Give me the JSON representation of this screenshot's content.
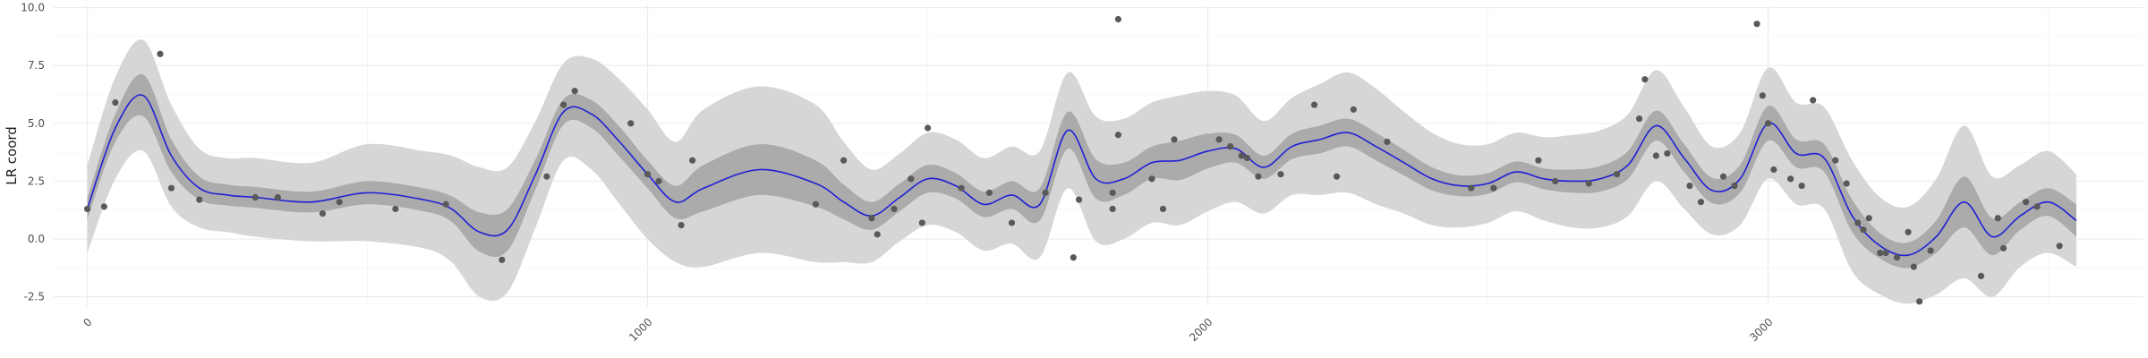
{
  "chart_data": {
    "type": "scatter",
    "title": "",
    "xlabel": "",
    "ylabel": "LR coord",
    "xlim": [
      -60,
      3670
    ],
    "ylim": [
      -2.9,
      10.1
    ],
    "x_ticks": [
      0,
      1000,
      2000,
      3000
    ],
    "x_tick_labels": [
      "0",
      "1000",
      "2000",
      "3000"
    ],
    "y_ticks": [
      -2.5,
      0.0,
      2.5,
      5.0,
      7.5,
      10.0
    ],
    "y_tick_labels": [
      "-2.5",
      "0.0",
      "2.5",
      "5.0",
      "7.5",
      "10.0"
    ],
    "grid": true,
    "colors": {
      "points": "#595959",
      "fit_line": "#1f1fd6",
      "inner_band": "#ababab",
      "outer_band": "#d6d6d6",
      "grid_major": "#ebebeb",
      "grid_minor": "#f4f4f4"
    },
    "points": [
      [
        0,
        1.3
      ],
      [
        30,
        1.4
      ],
      [
        50,
        5.9
      ],
      [
        130,
        8.0
      ],
      [
        150,
        2.2
      ],
      [
        200,
        1.7
      ],
      [
        300,
        1.8
      ],
      [
        340,
        1.8
      ],
      [
        420,
        1.1
      ],
      [
        450,
        1.6
      ],
      [
        550,
        1.3
      ],
      [
        640,
        1.5
      ],
      [
        740,
        -0.9
      ],
      [
        820,
        2.7
      ],
      [
        850,
        5.8
      ],
      [
        870,
        6.4
      ],
      [
        970,
        5.0
      ],
      [
        1000,
        2.8
      ],
      [
        1020,
        2.5
      ],
      [
        1060,
        0.6
      ],
      [
        1080,
        3.4
      ],
      [
        1300,
        1.5
      ],
      [
        1350,
        3.4
      ],
      [
        1400,
        0.9
      ],
      [
        1410,
        0.2
      ],
      [
        1440,
        1.3
      ],
      [
        1470,
        2.6
      ],
      [
        1490,
        0.7
      ],
      [
        1500,
        4.8
      ],
      [
        1560,
        2.2
      ],
      [
        1610,
        2.0
      ],
      [
        1650,
        0.7
      ],
      [
        1710,
        2.0
      ],
      [
        1760,
        -0.8
      ],
      [
        1770,
        1.7
      ],
      [
        1840,
        9.5
      ],
      [
        1840,
        4.5
      ],
      [
        1830,
        2.0
      ],
      [
        1830,
        1.3
      ],
      [
        1900,
        2.6
      ],
      [
        1920,
        1.3
      ],
      [
        1940,
        4.3
      ],
      [
        2020,
        4.3
      ],
      [
        2040,
        4.0
      ],
      [
        2060,
        3.6
      ],
      [
        2070,
        3.5
      ],
      [
        2090,
        2.7
      ],
      [
        2130,
        2.8
      ],
      [
        2190,
        5.8
      ],
      [
        2230,
        2.7
      ],
      [
        2260,
        5.6
      ],
      [
        2320,
        4.2
      ],
      [
        2470,
        2.2
      ],
      [
        2510,
        2.2
      ],
      [
        2590,
        3.4
      ],
      [
        2620,
        2.5
      ],
      [
        2680,
        2.4
      ],
      [
        2730,
        2.8
      ],
      [
        2770,
        5.2
      ],
      [
        2780,
        6.9
      ],
      [
        2800,
        3.6
      ],
      [
        2820,
        3.7
      ],
      [
        2860,
        2.3
      ],
      [
        2880,
        1.6
      ],
      [
        2920,
        2.7
      ],
      [
        2940,
        2.3
      ],
      [
        2980,
        9.3
      ],
      [
        2990,
        6.2
      ],
      [
        3000,
        5.0
      ],
      [
        3010,
        3.0
      ],
      [
        3040,
        2.6
      ],
      [
        3060,
        2.3
      ],
      [
        3080,
        6.0
      ],
      [
        3120,
        3.4
      ],
      [
        3140,
        2.4
      ],
      [
        3160,
        0.7
      ],
      [
        3170,
        0.4
      ],
      [
        3180,
        0.9
      ],
      [
        3200,
        -0.6
      ],
      [
        3210,
        -0.6
      ],
      [
        3230,
        -0.8
      ],
      [
        3250,
        0.3
      ],
      [
        3260,
        -1.2
      ],
      [
        3270,
        -2.7
      ],
      [
        3290,
        -0.5
      ],
      [
        3380,
        -1.6
      ],
      [
        3410,
        0.9
      ],
      [
        3420,
        -0.4
      ],
      [
        3460,
        1.6
      ],
      [
        3480,
        1.4
      ],
      [
        3520,
        -0.3
      ]
    ],
    "fit": {
      "x": [
        0,
        50,
        100,
        150,
        200,
        250,
        300,
        400,
        500,
        600,
        650,
        700,
        750,
        800,
        850,
        900,
        950,
        1000,
        1050,
        1100,
        1200,
        1300,
        1350,
        1400,
        1450,
        1500,
        1550,
        1600,
        1650,
        1700,
        1750,
        1800,
        1850,
        1900,
        1950,
        2000,
        2050,
        2100,
        2150,
        2200,
        2250,
        2300,
        2350,
        2400,
        2450,
        2500,
        2550,
        2600,
        2650,
        2700,
        2750,
        2800,
        2850,
        2900,
        2950,
        3000,
        3050,
        3100,
        3150,
        3200,
        3250,
        3300,
        3350,
        3400,
        3450,
        3500,
        3550
      ],
      "y": [
        1.3,
        4.8,
        6.2,
        3.6,
        2.2,
        1.9,
        1.8,
        1.6,
        2.0,
        1.7,
        1.3,
        0.3,
        0.4,
        2.8,
        5.5,
        5.4,
        4.2,
        2.8,
        1.6,
        2.2,
        3.0,
        2.4,
        1.6,
        1.0,
        1.8,
        2.6,
        2.3,
        1.5,
        1.9,
        1.5,
        4.7,
        2.6,
        2.6,
        3.3,
        3.4,
        3.8,
        3.9,
        3.1,
        4.0,
        4.3,
        4.6,
        4.0,
        3.3,
        2.6,
        2.3,
        2.4,
        2.9,
        2.6,
        2.5,
        2.6,
        3.2,
        4.9,
        3.5,
        2.1,
        2.6,
        5.0,
        3.7,
        3.5,
        1.0,
        -0.3,
        -0.7,
        0.1,
        1.6,
        0.1,
        1.0,
        1.6,
        0.8
      ],
      "inner_halfwidth": [
        0.45,
        0.6,
        0.9,
        0.7,
        0.5,
        0.45,
        0.45,
        0.45,
        0.5,
        0.5,
        0.55,
        0.85,
        0.9,
        0.65,
        0.55,
        0.6,
        0.65,
        0.6,
        0.7,
        1.0,
        1.1,
        1.0,
        0.75,
        0.6,
        0.6,
        0.6,
        0.55,
        0.55,
        0.6,
        0.7,
        0.8,
        0.85,
        0.7,
        0.7,
        0.85,
        0.75,
        0.6,
        0.5,
        0.55,
        0.6,
        0.6,
        0.6,
        0.55,
        0.5,
        0.45,
        0.45,
        0.45,
        0.45,
        0.5,
        0.55,
        0.6,
        0.65,
        0.6,
        0.55,
        0.6,
        0.75,
        0.6,
        0.6,
        0.7,
        0.55,
        0.55,
        0.7,
        1.1,
        0.8,
        0.6,
        0.6,
        0.7
      ],
      "outer_halfwidth": [
        1.9,
        2.2,
        2.4,
        2.2,
        1.7,
        1.6,
        1.7,
        1.7,
        2.1,
        2.1,
        2.3,
        2.8,
        2.7,
        2.3,
        2.1,
        2.4,
        2.7,
        2.8,
        2.6,
        3.4,
        3.6,
        3.4,
        2.6,
        2.0,
        1.9,
        2.0,
        2.0,
        2.0,
        2.1,
        2.3,
        2.5,
        2.7,
        2.6,
        2.6,
        2.8,
        2.6,
        2.3,
        2.0,
        2.1,
        2.4,
        2.6,
        2.5,
        2.2,
        2.0,
        1.8,
        1.7,
        1.7,
        1.8,
        2.0,
        2.1,
        2.2,
        2.4,
        2.2,
        1.9,
        2.0,
        2.4,
        2.2,
        2.2,
        2.4,
        2.1,
        2.1,
        2.5,
        3.3,
        2.6,
        2.2,
        2.2,
        2.0
      ]
    }
  }
}
